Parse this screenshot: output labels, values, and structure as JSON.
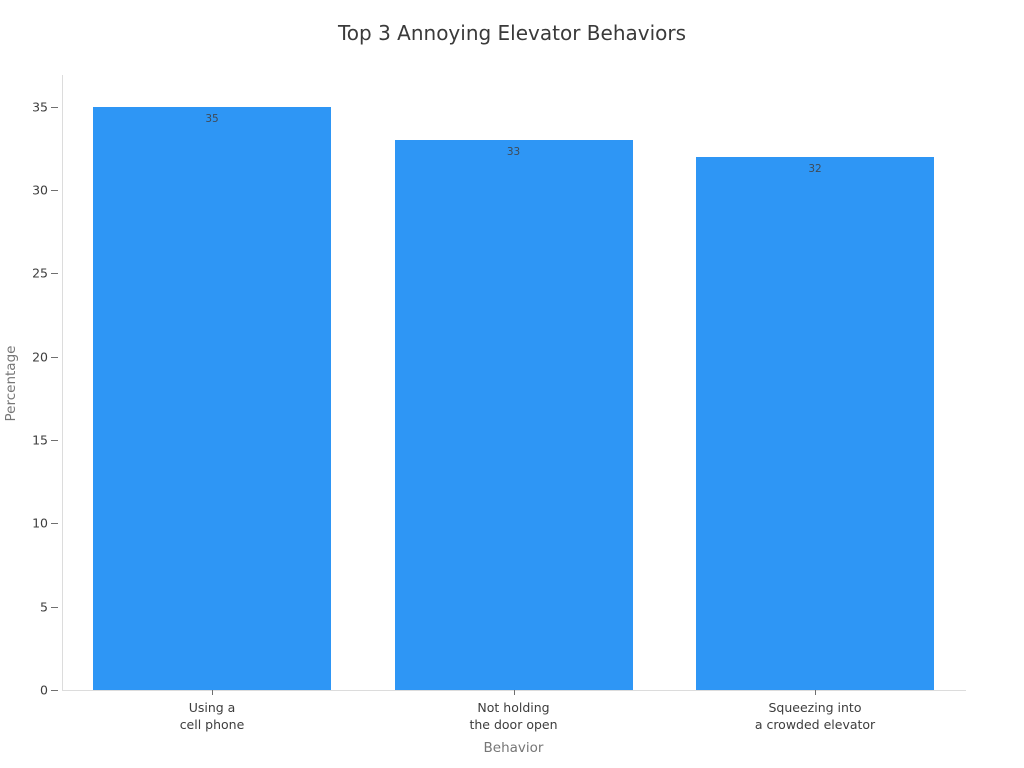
{
  "chart_data": {
    "type": "bar",
    "title": "Top 3 Annoying Elevator Behaviors",
    "xlabel": "Behavior",
    "ylabel": "Percentage",
    "categories": [
      {
        "lines": [
          "Using a",
          "cell phone"
        ]
      },
      {
        "lines": [
          "Not holding",
          "the door open"
        ]
      },
      {
        "lines": [
          "Squeezing into",
          "a crowded elevator"
        ]
      }
    ],
    "values": [
      35,
      33,
      32
    ],
    "value_labels": [
      "35",
      "33",
      "32"
    ],
    "yticks": [
      0,
      5,
      10,
      15,
      20,
      25,
      30,
      35
    ],
    "ylim": [
      0,
      36.9
    ],
    "grid": false,
    "legend": false,
    "bar_color": "#2e96f5",
    "background_color": "#ffffff",
    "title_color": "#3a3a3a",
    "tick_label_color": "#3d3d3d",
    "axis_title_color": "#767676",
    "value_label_color": "#3f4a56",
    "spine_color": "#dcdcdc"
  }
}
